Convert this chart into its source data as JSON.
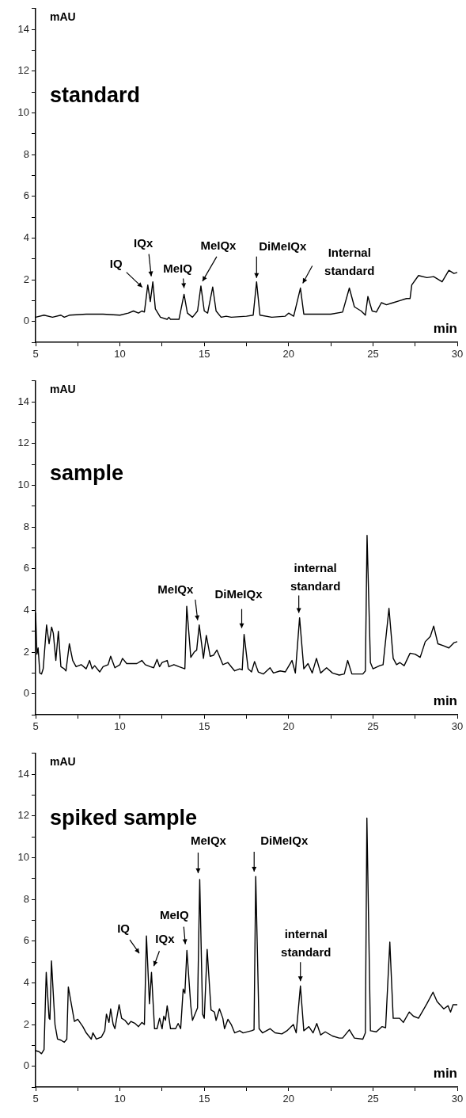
{
  "chart_data": [
    {
      "type": "line",
      "title": "standard",
      "xlabel": "min",
      "ylabel": "mAU",
      "xlim": [
        5,
        30
      ],
      "ylim": [
        -1,
        15
      ],
      "xticks": [
        5,
        {
          "value": 7.5,
          "label": null
        },
        10,
        {
          "value": 12.5,
          "label": null
        },
        15,
        {
          "value": 17.5,
          "label": null
        },
        20,
        {
          "value": 22.5,
          "label": null
        },
        25,
        {
          "value": 27.5,
          "label": null
        },
        30
      ],
      "yticks": [
        {
          "value": -1,
          "label": null
        },
        0,
        {
          "value": 1,
          "label": null
        },
        2,
        {
          "value": 3,
          "label": null
        },
        4,
        {
          "value": 5,
          "label": null
        },
        6,
        {
          "value": 7,
          "label": null
        },
        8,
        {
          "value": 9,
          "label": null
        },
        10,
        {
          "value": 11,
          "label": null
        },
        12,
        {
          "value": 13,
          "label": null
        },
        14,
        {
          "value": 15,
          "label": null
        }
      ],
      "grid": false,
      "legend": false,
      "marker": "none",
      "series": [
        {
          "color": "#000000",
          "x": [
            5,
            5.5,
            6,
            6.5,
            6.7,
            7,
            8,
            9,
            10,
            10.5,
            10.8,
            11.1,
            11.3,
            11.45,
            11.65,
            11.8,
            11.95,
            12.1,
            12.4,
            12.8,
            12.9,
            13,
            13.5,
            13.8,
            14,
            14.3,
            14.6,
            14.8,
            15,
            15.2,
            15.5,
            15.7,
            16,
            16.3,
            16.6,
            17.5,
            17.9,
            18.1,
            18.3,
            19,
            19.8,
            20,
            20.3,
            20.7,
            20.9,
            21.5,
            22.5,
            23.2,
            23.6,
            23.9,
            24.3,
            24.55,
            24.7,
            24.95,
            25.2,
            25.5,
            25.8,
            26.2,
            26.6,
            27,
            27.2,
            27.3,
            27.7,
            28.2,
            28.6,
            29.1,
            29.5,
            29.8,
            30
          ],
          "values": [
            0.2,
            0.3,
            0.2,
            0.3,
            0.2,
            0.3,
            0.35,
            0.35,
            0.3,
            0.4,
            0.5,
            0.4,
            0.5,
            0.45,
            1.75,
            0.95,
            1.9,
            0.6,
            0.2,
            0.1,
            0.2,
            0.1,
            0.1,
            1.3,
            0.4,
            0.2,
            0.5,
            1.7,
            0.5,
            0.4,
            1.65,
            0.5,
            0.2,
            0.25,
            0.2,
            0.25,
            0.3,
            1.9,
            0.3,
            0.2,
            0.25,
            0.4,
            0.25,
            1.6,
            0.35,
            0.35,
            0.35,
            0.45,
            1.6,
            0.7,
            0.5,
            0.3,
            1.2,
            0.5,
            0.45,
            0.9,
            0.8,
            0.9,
            1.0,
            1.1,
            1.1,
            1.75,
            2.2,
            2.1,
            2.15,
            1.9,
            2.45,
            2.3,
            2.35
          ]
        }
      ],
      "annotations": [
        {
          "text": "IQ",
          "x": 11.65,
          "y": 1.75
        },
        {
          "text": "IQx",
          "x": 11.95,
          "y": 1.9
        },
        {
          "text": "MeIQ",
          "x": 13.8,
          "y": 1.3
        },
        {
          "text": "MeIQx",
          "x": 14.8,
          "y": 1.7
        },
        {
          "text": "DiMeIQx",
          "x": 18.1,
          "y": 1.9
        },
        {
          "text": "Internal standard",
          "x": 20.7,
          "y": 1.6
        }
      ]
    },
    {
      "type": "line",
      "title": "sample",
      "xlabel": "min",
      "ylabel": "mAU",
      "xlim": [
        5,
        30
      ],
      "ylim": [
        -1,
        15
      ],
      "xticks": [
        5,
        {
          "value": 7.5,
          "label": null
        },
        10,
        {
          "value": 12.5,
          "label": null
        },
        15,
        {
          "value": 17.5,
          "label": null
        },
        20,
        {
          "value": 22.5,
          "label": null
        },
        25,
        {
          "value": 27.5,
          "label": null
        },
        30
      ],
      "yticks": [
        {
          "value": -1,
          "label": null
        },
        0,
        {
          "value": 1,
          "label": null
        },
        2,
        {
          "value": 3,
          "label": null
        },
        4,
        {
          "value": 5,
          "label": null
        },
        6,
        {
          "value": 7,
          "label": null
        },
        8,
        {
          "value": 9,
          "label": null
        },
        10,
        {
          "value": 11,
          "label": null
        },
        12,
        {
          "value": 13,
          "label": null
        },
        14,
        {
          "value": 15,
          "label": null
        }
      ],
      "grid": false,
      "legend": false,
      "marker": "none",
      "series": [
        {
          "color": "#000000",
          "x": [
            5,
            5.08,
            5.15,
            5.25,
            5.35,
            5.45,
            5.65,
            5.8,
            5.95,
            6.05,
            6.2,
            6.35,
            6.5,
            6.7,
            6.8,
            7.0,
            7.2,
            7.4,
            7.7,
            8.0,
            8.2,
            8.35,
            8.5,
            8.8,
            9.0,
            9.3,
            9.45,
            9.7,
            10.0,
            10.15,
            10.4,
            10.7,
            11.0,
            11.3,
            11.5,
            11.8,
            12.0,
            12.2,
            12.35,
            12.5,
            12.8,
            12.9,
            13.2,
            13.5,
            13.85,
            13.96,
            14.2,
            14.4,
            14.55,
            14.7,
            14.95,
            15.12,
            15.35,
            15.55,
            15.75,
            16.1,
            16.4,
            16.8,
            17.1,
            17.25,
            17.36,
            17.6,
            17.8,
            17.98,
            18.2,
            18.5,
            18.9,
            19.1,
            19.5,
            19.8,
            20.2,
            20.4,
            20.65,
            20.9,
            21.15,
            21.4,
            21.65,
            21.9,
            22.25,
            22.6,
            23.0,
            23.3,
            23.5,
            23.75,
            24.4,
            24.55,
            24.65,
            24.85,
            25.0,
            25.4,
            25.6,
            25.95,
            26.2,
            26.4,
            26.6,
            26.85,
            27.2,
            27.5,
            27.8,
            28.1,
            28.4,
            28.6,
            28.85,
            29.2,
            29.5,
            29.8,
            30
          ],
          "values": [
            3.9,
            1.9,
            2.2,
            1.0,
            0.95,
            1.2,
            3.3,
            2.4,
            3.2,
            2.9,
            1.6,
            3.0,
            1.3,
            1.2,
            1.1,
            2.4,
            1.6,
            1.3,
            1.4,
            1.2,
            1.6,
            1.2,
            1.35,
            1.05,
            1.3,
            1.4,
            1.8,
            1.25,
            1.4,
            1.7,
            1.45,
            1.45,
            1.45,
            1.6,
            1.4,
            1.3,
            1.25,
            1.65,
            1.3,
            1.5,
            1.6,
            1.3,
            1.4,
            1.3,
            1.2,
            4.2,
            1.75,
            2.0,
            2.1,
            3.3,
            1.7,
            2.8,
            1.8,
            1.85,
            2.1,
            1.4,
            1.5,
            1.1,
            1.2,
            1.15,
            2.85,
            1.2,
            1.05,
            1.55,
            1.05,
            0.95,
            1.25,
            1.0,
            1.1,
            1.05,
            1.6,
            1.0,
            3.65,
            1.2,
            1.45,
            1.0,
            1.7,
            1.0,
            1.25,
            1.0,
            0.9,
            0.95,
            1.6,
            0.95,
            0.95,
            1.1,
            7.6,
            1.5,
            1.2,
            1.35,
            1.4,
            4.1,
            1.7,
            1.4,
            1.5,
            1.35,
            1.95,
            1.9,
            1.75,
            2.5,
            2.75,
            3.25,
            2.4,
            2.3,
            2.2,
            2.45,
            2.5
          ]
        }
      ],
      "annotations": [
        {
          "text": "MeIQx",
          "x": 14.7,
          "y": 3.3
        },
        {
          "text": "DiMeIQx",
          "x": 17.36,
          "y": 2.85
        },
        {
          "text": "internal standard",
          "x": 20.65,
          "y": 3.65
        }
      ]
    },
    {
      "type": "line",
      "title": "spiked sample",
      "xlabel": "min",
      "ylabel": "mAU",
      "xlim": [
        5,
        30
      ],
      "ylim": [
        -1,
        15
      ],
      "xticks": [
        5,
        {
          "value": 7.5,
          "label": null
        },
        10,
        {
          "value": 12.5,
          "label": null
        },
        15,
        {
          "value": 17.5,
          "label": null
        },
        20,
        {
          "value": 22.5,
          "label": null
        },
        25,
        {
          "value": 27.5,
          "label": null
        },
        30
      ],
      "yticks": [
        {
          "value": -1,
          "label": null
        },
        0,
        {
          "value": 1,
          "label": null
        },
        2,
        {
          "value": 3,
          "label": null
        },
        4,
        {
          "value": 5,
          "label": null
        },
        6,
        {
          "value": 7,
          "label": null
        },
        8,
        {
          "value": 9,
          "label": null
        },
        10,
        {
          "value": 11,
          "label": null
        },
        12,
        {
          "value": 13,
          "label": null
        },
        14,
        {
          "value": 15,
          "label": null
        }
      ],
      "grid": false,
      "legend": false,
      "marker": "none",
      "series": [
        {
          "color": "#000000",
          "x": [
            5,
            5.2,
            5.35,
            5.5,
            5.63,
            5.8,
            5.85,
            5.94,
            6.15,
            6.3,
            6.5,
            6.7,
            6.85,
            6.94,
            7.3,
            7.5,
            7.8,
            8.0,
            8.3,
            8.4,
            8.6,
            8.9,
            9.1,
            9.2,
            9.35,
            9.45,
            9.6,
            9.7,
            9.95,
            10.1,
            10.3,
            10.5,
            10.65,
            10.9,
            11.1,
            11.3,
            11.45,
            11.57,
            11.75,
            11.87,
            12.05,
            12.2,
            12.35,
            12.5,
            12.6,
            12.7,
            12.8,
            13.0,
            13.3,
            13.45,
            13.6,
            13.75,
            13.85,
            13.97,
            14.2,
            14.3,
            14.5,
            14.6,
            14.73,
            14.9,
            15.0,
            15.17,
            15.4,
            15.6,
            15.7,
            15.9,
            16.1,
            16.2,
            16.4,
            16.6,
            16.8,
            17.1,
            17.3,
            17.8,
            17.95,
            18.05,
            18.25,
            18.45,
            18.9,
            19.2,
            19.6,
            19.9,
            20.28,
            20.45,
            20.7,
            20.9,
            21.2,
            21.45,
            21.67,
            21.9,
            22.17,
            22.6,
            23.0,
            23.2,
            23.6,
            23.9,
            24.4,
            24.55,
            24.64,
            24.85,
            25.2,
            25.53,
            25.75,
            26.0,
            26.2,
            26.58,
            26.8,
            27.15,
            27.4,
            27.7,
            28.2,
            28.56,
            28.8,
            29.2,
            29.45,
            29.6,
            29.75,
            30
          ],
          "values": [
            0.75,
            0.7,
            0.6,
            0.8,
            4.5,
            2.3,
            2.25,
            5.05,
            2.0,
            1.3,
            1.25,
            1.15,
            1.3,
            3.8,
            2.15,
            2.25,
            1.9,
            1.6,
            1.3,
            1.6,
            1.3,
            1.4,
            1.7,
            2.5,
            2.1,
            2.75,
            2.0,
            1.8,
            2.95,
            2.3,
            2.2,
            2.0,
            2.15,
            2.05,
            1.9,
            2.1,
            2.0,
            6.25,
            3.0,
            4.5,
            1.8,
            1.8,
            2.3,
            1.8,
            2.4,
            2.2,
            2.9,
            1.8,
            1.8,
            2.05,
            1.8,
            3.7,
            3.5,
            5.55,
            2.9,
            2.2,
            2.6,
            2.8,
            8.95,
            2.5,
            2.3,
            5.6,
            2.7,
            2.6,
            2.2,
            2.75,
            2.3,
            1.8,
            2.25,
            2.0,
            1.6,
            1.7,
            1.6,
            1.7,
            1.75,
            9.1,
            1.8,
            1.6,
            1.8,
            1.6,
            1.55,
            1.7,
            2.0,
            1.6,
            3.85,
            1.7,
            1.9,
            1.6,
            2.05,
            1.5,
            1.65,
            1.45,
            1.35,
            1.35,
            1.75,
            1.35,
            1.3,
            1.6,
            11.9,
            1.7,
            1.65,
            1.9,
            1.85,
            5.95,
            2.3,
            2.3,
            2.1,
            2.6,
            2.4,
            2.3,
            3.0,
            3.55,
            3.1,
            2.75,
            2.9,
            2.6,
            2.95,
            2.95
          ]
        }
      ],
      "annotations": [
        {
          "text": "IQ",
          "x": 11.57,
          "y": 6.25
        },
        {
          "text": "IQx",
          "x": 11.87,
          "y": 4.5
        },
        {
          "text": "MeIQ",
          "x": 13.97,
          "y": 5.55
        },
        {
          "text": "MeIQx",
          "x": 14.73,
          "y": 8.95
        },
        {
          "text": "DiMeIQx",
          "x": 18.05,
          "y": 9.1
        },
        {
          "text": "internal standard",
          "x": 20.7,
          "y": 3.85
        }
      ]
    }
  ]
}
